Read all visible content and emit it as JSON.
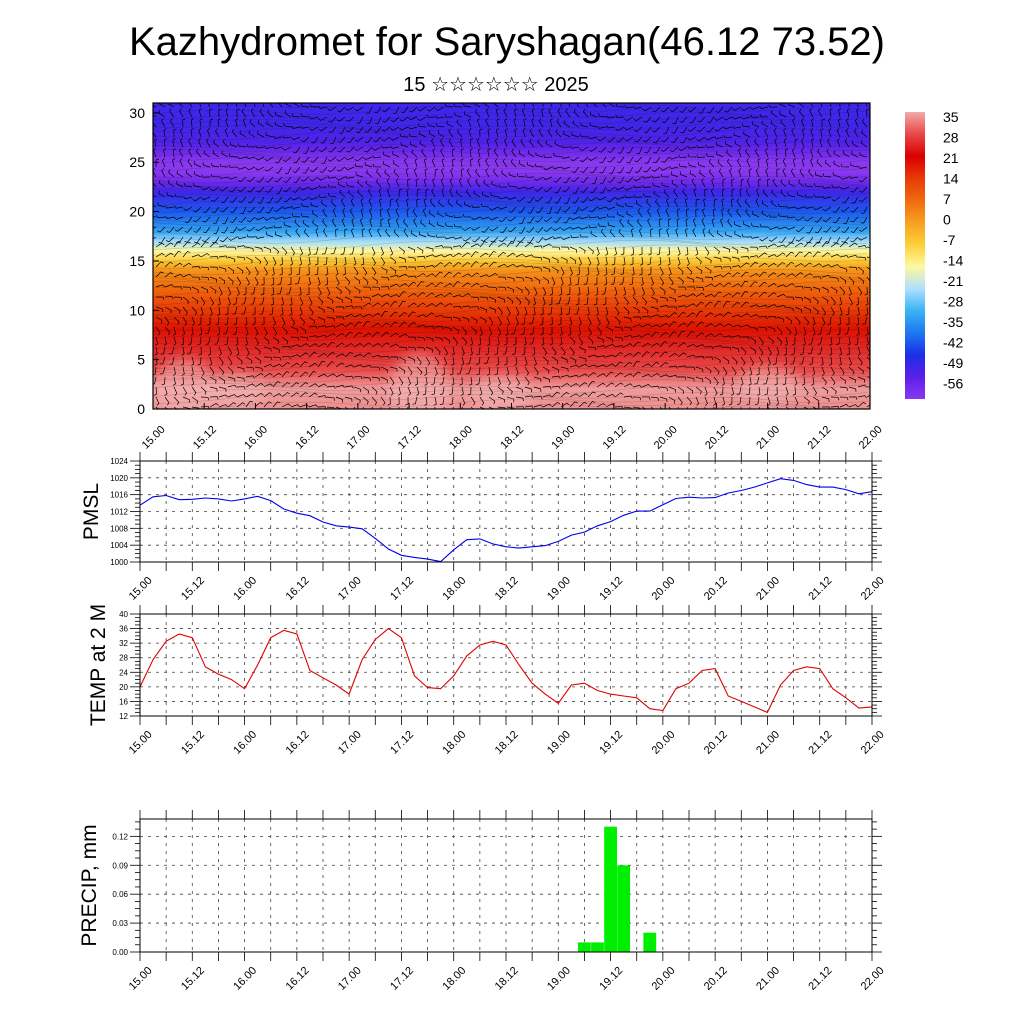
{
  "page": {
    "title": "Kazhydromet for Saryshagan(46.12 73.52)",
    "subtitle": "15 ☆☆☆☆☆☆ 2025"
  },
  "chart_data": [
    {
      "type": "heatmap",
      "name": "cross-section",
      "x_ticks": [
        "15.00",
        "15.12",
        "16.00",
        "16.12",
        "17.00",
        "17.12",
        "18.00",
        "18.12",
        "19.00",
        "19.12",
        "20.00",
        "20.12",
        "21.00",
        "21.12",
        "22.00"
      ],
      "y_ticks": [
        0,
        5,
        10,
        15,
        20,
        25,
        30
      ],
      "ylim": [
        0,
        31
      ],
      "colorbar_labels": [
        "35",
        "28",
        "21",
        "14",
        "7",
        "0",
        "-7",
        "-14",
        "-21",
        "-28",
        "-35",
        "-42",
        "-49",
        "-56"
      ],
      "colorscale": [
        "#f0aaaa",
        "#e94848",
        "#d90000",
        "#e83a08",
        "#f06a0e",
        "#f7a020",
        "#fccf38",
        "#fff8a0",
        "#b0e0ff",
        "#3ab4f4",
        "#1e78f0",
        "#1a2ee8",
        "#5a20e8",
        "#8a38f0"
      ],
      "level_profile": [
        [
          0,
          33
        ],
        [
          2,
          34
        ],
        [
          4,
          28
        ],
        [
          6,
          25
        ],
        [
          8,
          19
        ],
        [
          10,
          14
        ],
        [
          12,
          8
        ],
        [
          14,
          2
        ],
        [
          15,
          -6
        ],
        [
          16,
          -14
        ],
        [
          17,
          -22
        ],
        [
          18,
          -30
        ],
        [
          20,
          -38
        ],
        [
          22,
          -46
        ],
        [
          23,
          -52
        ],
        [
          24,
          -56
        ],
        [
          25,
          -56
        ],
        [
          26,
          -52
        ],
        [
          27,
          -48
        ],
        [
          29,
          -46
        ],
        [
          31,
          -46
        ]
      ],
      "warm_spots": [
        [
          15.3,
          2,
          5
        ],
        [
          15.8,
          1.8,
          3
        ],
        [
          17.6,
          2,
          6
        ],
        [
          18.4,
          1.5,
          3
        ],
        [
          21.0,
          2.5,
          3
        ]
      ],
      "grid": false
    },
    {
      "type": "line",
      "name": "pmsl",
      "ylabel": "PMSL",
      "y_ticks": [
        1000,
        1004,
        1008,
        1012,
        1016,
        1020,
        1024
      ],
      "ylim": [
        1000,
        1024
      ],
      "x_ticks": [
        "15.00",
        "15.12",
        "16.00",
        "16.12",
        "17.00",
        "17.12",
        "18.00",
        "18.12",
        "19.00",
        "19.12",
        "20.00",
        "20.12",
        "21.00",
        "21.12",
        "22.00"
      ],
      "color": "#0000ee",
      "series": [
        {
          "x": [
            15.0,
            15.125,
            15.25,
            15.375,
            15.5,
            15.625,
            15.75,
            15.875,
            16.0,
            16.125,
            16.25,
            16.375,
            16.5,
            16.625,
            16.75,
            16.875,
            17.0,
            17.125,
            17.25,
            17.375,
            17.5,
            17.625,
            17.75,
            17.875,
            18.0,
            18.125,
            18.25,
            18.375,
            18.5,
            18.625,
            18.75,
            18.875,
            19.0,
            19.125,
            19.25,
            19.375,
            19.5,
            19.625,
            19.75,
            19.875,
            20.0,
            20.125,
            20.25,
            20.375,
            20.5,
            20.625,
            20.75,
            20.875,
            21.0,
            21.125,
            21.25,
            21.375,
            21.5,
            21.625,
            21.75,
            21.875,
            22.0
          ],
          "values": [
            1013.5,
            1015.5,
            1015.8,
            1014.8,
            1014.9,
            1015.2,
            1015.0,
            1014.5,
            1015.0,
            1015.6,
            1014.6,
            1012.6,
            1011.6,
            1011.0,
            1009.5,
            1008.6,
            1008.3,
            1007.9,
            1005.6,
            1003.1,
            1001.6,
            1001.1,
            1000.7,
            1000.1,
            1002.9,
            1005.3,
            1005.5,
            1004.3,
            1003.6,
            1003.3,
            1003.6,
            1003.9,
            1004.9,
            1006.4,
            1007.1,
            1008.6,
            1009.6,
            1011.1,
            1012.1,
            1012.1,
            1013.6,
            1015.1,
            1015.4,
            1015.2,
            1015.3,
            1016.4,
            1017.0,
            1017.8,
            1018.8,
            1019.8,
            1019.4,
            1018.4,
            1017.8,
            1017.8,
            1017.2,
            1016.2,
            1016.7
          ]
        }
      ],
      "grid": true
    },
    {
      "type": "line",
      "name": "temp2m",
      "ylabel": "TEMP at 2 M",
      "y_ticks": [
        12,
        16,
        20,
        24,
        28,
        32,
        36,
        40
      ],
      "ylim": [
        12,
        40
      ],
      "x_ticks": [
        "15.00",
        "15.12",
        "16.00",
        "16.12",
        "17.00",
        "17.12",
        "18.00",
        "18.12",
        "19.00",
        "19.12",
        "20.00",
        "20.12",
        "21.00",
        "21.12",
        "22.00"
      ],
      "color": "#e00000",
      "series": [
        {
          "x": [
            15.0,
            15.125,
            15.25,
            15.375,
            15.5,
            15.625,
            15.75,
            15.875,
            16.0,
            16.125,
            16.25,
            16.375,
            16.5,
            16.625,
            16.75,
            16.875,
            17.0,
            17.125,
            17.25,
            17.375,
            17.5,
            17.625,
            17.75,
            17.875,
            18.0,
            18.125,
            18.25,
            18.375,
            18.5,
            18.625,
            18.75,
            18.875,
            19.0,
            19.125,
            19.25,
            19.375,
            19.5,
            19.625,
            19.75,
            19.875,
            20.0,
            20.125,
            20.25,
            20.375,
            20.5,
            20.625,
            20.75,
            20.875,
            21.0,
            21.125,
            21.25,
            21.375,
            21.5,
            21.625,
            21.75,
            21.875,
            22.0
          ],
          "values": [
            20.0,
            27.5,
            32.5,
            34.5,
            33.5,
            25.5,
            23.5,
            22.0,
            19.5,
            26.0,
            33.5,
            35.5,
            34.5,
            24.5,
            22.5,
            20.5,
            18.0,
            27.5,
            33.0,
            36.0,
            33.5,
            23.0,
            19.8,
            19.5,
            23.0,
            28.5,
            31.5,
            32.5,
            31.5,
            26.0,
            21.0,
            18.0,
            15.5,
            20.5,
            21.0,
            19.0,
            18.0,
            17.5,
            17.0,
            14.0,
            13.5,
            19.5,
            21.0,
            24.5,
            25.0,
            17.5,
            16.0,
            14.5,
            13.0,
            20.5,
            24.5,
            25.5,
            25.0,
            19.5,
            17.0,
            14.2,
            14.5
          ]
        }
      ],
      "grid": true
    },
    {
      "type": "bar",
      "name": "precip",
      "ylabel": "PRECIP, mm",
      "y_ticks": [
        "0.00",
        "0.03",
        "0.06",
        "0.09",
        "0.12"
      ],
      "ylim": [
        0,
        0.138
      ],
      "x_ticks": [
        "15.00",
        "15.12",
        "16.00",
        "16.12",
        "17.00",
        "17.12",
        "18.00",
        "18.12",
        "19.00",
        "19.12",
        "20.00",
        "20.12",
        "21.00",
        "21.12",
        "22.00"
      ],
      "color": "#00ee00",
      "bars": [
        {
          "x": 19.25,
          "value": 0.01
        },
        {
          "x": 19.375,
          "value": 0.01
        },
        {
          "x": 19.5,
          "value": 0.13
        },
        {
          "x": 19.625,
          "value": 0.09
        },
        {
          "x": 19.875,
          "value": 0.02
        }
      ],
      "grid": true
    }
  ]
}
